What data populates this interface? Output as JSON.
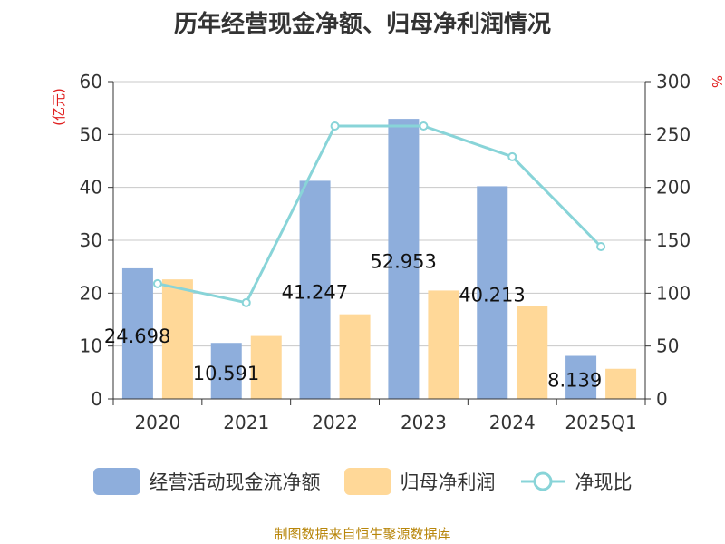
{
  "title": "历年经营现金净额、归母净利润情况",
  "source": "制图数据来自恒生聚源数据库",
  "colors": {
    "cash_flow": "#8eaedc",
    "net_profit": "#ffd898",
    "ratio": "#88d4d8",
    "axis": "#333333",
    "grid": "#c8c8c8",
    "unit": "#e02020"
  },
  "chart_data": {
    "type": "bar",
    "title": "历年经营现金净额、归母净利润情况",
    "categories": [
      "2020",
      "2021",
      "2022",
      "2023",
      "2024",
      "2025Q1"
    ],
    "y_left": {
      "unit_label": "(亿元)",
      "range": [
        0,
        60
      ],
      "ticks": [
        "0",
        "10",
        "20",
        "30",
        "40",
        "50",
        "60"
      ]
    },
    "y_right": {
      "unit_label": "%",
      "range": [
        0,
        300
      ],
      "ticks": [
        "0",
        "50",
        "100",
        "150",
        "200",
        "250",
        "300"
      ]
    },
    "grid": true,
    "legend_position": "bottom",
    "series": [
      {
        "name": "经营活动现金流净额",
        "type": "bar",
        "axis": "left",
        "values": [
          24.698,
          10.591,
          41.247,
          52.953,
          40.213,
          8.139
        ],
        "labels": [
          "24.698",
          "10.591",
          "41.247",
          "52.953",
          "40.213",
          "8.139"
        ]
      },
      {
        "name": "归母净利润",
        "type": "bar",
        "axis": "left",
        "values": [
          22.6,
          11.9,
          16.0,
          20.5,
          17.6,
          5.7
        ]
      },
      {
        "name": "净现比",
        "type": "line",
        "axis": "right",
        "values": [
          109,
          91,
          258,
          258,
          229,
          144
        ]
      }
    ]
  }
}
